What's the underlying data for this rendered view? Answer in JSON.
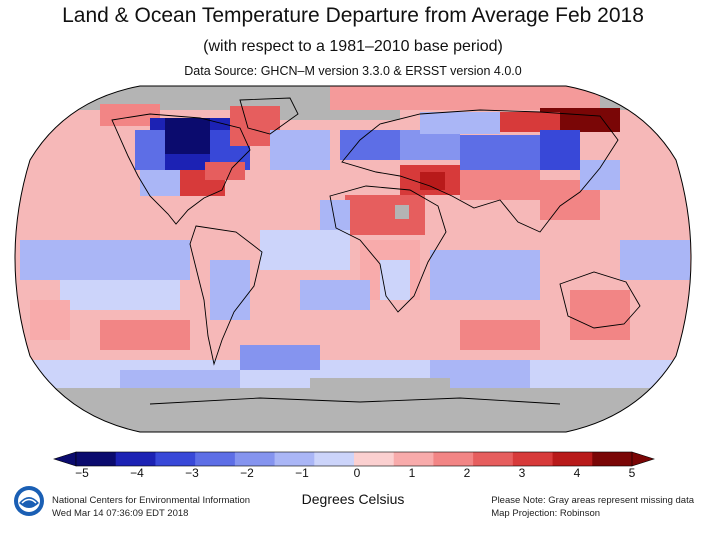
{
  "header": {
    "title": "Land & Ocean Temperature Departure from Average Feb 2018",
    "subtitle": "(with respect to a 1981–2010 base period)",
    "source": "Data Source: GHCN–M version 3.3.0 & ERSST version 4.0.0"
  },
  "map": {
    "projection": "Robinson",
    "missing_color": "#b4b4b4",
    "ocean_outline_color": "#000000"
  },
  "colorbar": {
    "tick_labels": [
      "−5",
      "−4",
      "−3",
      "−2",
      "−1",
      "0",
      "1",
      "2",
      "3",
      "4",
      "5"
    ],
    "units": "Degrees Celsius",
    "colors": [
      "#0b0b6e",
      "#1c22b4",
      "#3848d8",
      "#5d6ee6",
      "#8594ef",
      "#aab6f6",
      "#ccd4fa",
      "#fbd0d0",
      "#f8abab",
      "#f28585",
      "#e65e5e",
      "#d73a3a",
      "#b81a1a",
      "#7a0606"
    ]
  },
  "footer": {
    "org_line1": "National Centers for Environmental Information",
    "org_line2": "Wed Mar 14 07:36:09 EDT 2018",
    "note_line1": "Please Note: Gray areas represent missing data",
    "note_line2": "Map Projection: Robinson",
    "logo_icon": "noaa-logo-icon"
  }
}
